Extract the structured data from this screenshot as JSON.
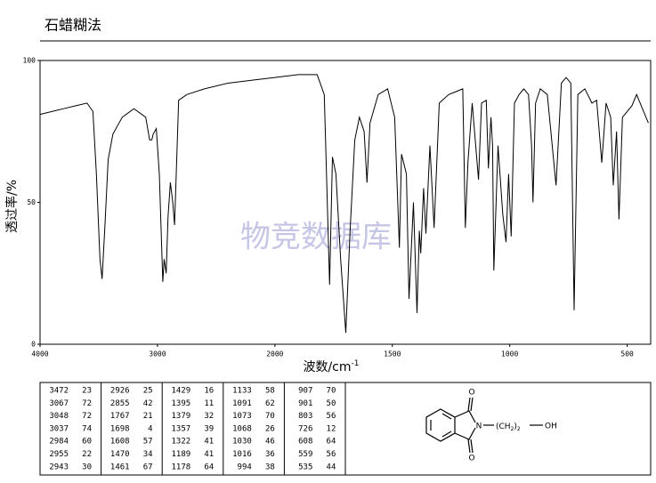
{
  "chart_data": {
    "type": "line",
    "title": "石蜡糊法",
    "x_label": "波数/cm",
    "x_label_sup": "-1",
    "y_label": "透过率/%",
    "watermark": "物竞数据库",
    "color": "#000000",
    "xlim": [
      4000,
      400
    ],
    "xticks": [
      4000,
      3000,
      2000,
      1500,
      1000,
      500
    ],
    "ylim": [
      0,
      100
    ],
    "yticks": [
      0,
      50,
      100
    ],
    "x": [
      4000,
      3900,
      3800,
      3700,
      3600,
      3550,
      3520,
      3490,
      3472,
      3450,
      3420,
      3380,
      3300,
      3200,
      3100,
      3067,
      3048,
      3037,
      3010,
      2984,
      2955,
      2943,
      2926,
      2910,
      2890,
      2870,
      2855,
      2840,
      2820,
      2750,
      2600,
      2400,
      2200,
      2000,
      1900,
      1820,
      1790,
      1767,
      1755,
      1740,
      1720,
      1698,
      1680,
      1660,
      1640,
      1620,
      1608,
      1595,
      1560,
      1520,
      1490,
      1470,
      1461,
      1440,
      1429,
      1410,
      1395,
      1385,
      1379,
      1367,
      1357,
      1340,
      1322,
      1300,
      1260,
      1230,
      1200,
      1189,
      1178,
      1160,
      1133,
      1120,
      1100,
      1091,
      1080,
      1073,
      1068,
      1050,
      1030,
      1016,
      1005,
      994,
      980,
      960,
      940,
      920,
      907,
      901,
      890,
      870,
      840,
      803,
      780,
      760,
      740,
      726,
      710,
      680,
      650,
      630,
      608,
      590,
      570,
      559,
      545,
      535,
      520,
      480,
      460,
      430,
      410
    ],
    "values": [
      81,
      82,
      83,
      84,
      85,
      82,
      60,
      30,
      23,
      40,
      65,
      74,
      80,
      83,
      80,
      72,
      72,
      74,
      76,
      60,
      22,
      30,
      25,
      45,
      57,
      50,
      42,
      60,
      86,
      88,
      90,
      92,
      93,
      94,
      95,
      95,
      88,
      21,
      66,
      60,
      30,
      4,
      40,
      72,
      80,
      75,
      57,
      78,
      88,
      90,
      80,
      34,
      67,
      60,
      16,
      50,
      11,
      40,
      32,
      55,
      39,
      70,
      41,
      85,
      88,
      89,
      90,
      41,
      64,
      85,
      58,
      85,
      86,
      62,
      80,
      70,
      26,
      70,
      46,
      36,
      60,
      38,
      85,
      88,
      90,
      88,
      70,
      50,
      85,
      90,
      88,
      56,
      92,
      94,
      92,
      12,
      88,
      90,
      85,
      86,
      64,
      85,
      80,
      56,
      75,
      44,
      80,
      84,
      88,
      82,
      78
    ]
  },
  "peak_table": [
    [
      [
        "3472",
        "23"
      ],
      [
        "3067",
        "72"
      ],
      [
        "3048",
        "72"
      ],
      [
        "3037",
        "74"
      ],
      [
        "2984",
        "60"
      ],
      [
        "2955",
        "22"
      ],
      [
        "2943",
        "30"
      ]
    ],
    [
      [
        "2926",
        "25"
      ],
      [
        "2855",
        "42"
      ],
      [
        "1767",
        "21"
      ],
      [
        "1698",
        "4"
      ],
      [
        "1608",
        "57"
      ],
      [
        "1470",
        "34"
      ],
      [
        "1461",
        "67"
      ]
    ],
    [
      [
        "1429",
        "16"
      ],
      [
        "1395",
        "11"
      ],
      [
        "1379",
        "32"
      ],
      [
        "1357",
        "39"
      ],
      [
        "1322",
        "41"
      ],
      [
        "1189",
        "41"
      ],
      [
        "1178",
        "64"
      ]
    ],
    [
      [
        "1133",
        "58"
      ],
      [
        "1091",
        "62"
      ],
      [
        "1073",
        "70"
      ],
      [
        "1068",
        "26"
      ],
      [
        "1030",
        "46"
      ],
      [
        "1016",
        "36"
      ],
      [
        "994",
        "38"
      ]
    ],
    [
      [
        "907",
        "70"
      ],
      [
        "901",
        "50"
      ],
      [
        "803",
        "56"
      ],
      [
        "726",
        "12"
      ],
      [
        "608",
        "64"
      ],
      [
        "559",
        "56"
      ],
      [
        "535",
        "44"
      ]
    ]
  ],
  "structure": {
    "o_top": "O",
    "o_bottom": "O",
    "n": "N",
    "chain_open": "(CH",
    "sub1": "2",
    "chain_close": ")",
    "sub2": "2",
    "oh": "OH"
  }
}
